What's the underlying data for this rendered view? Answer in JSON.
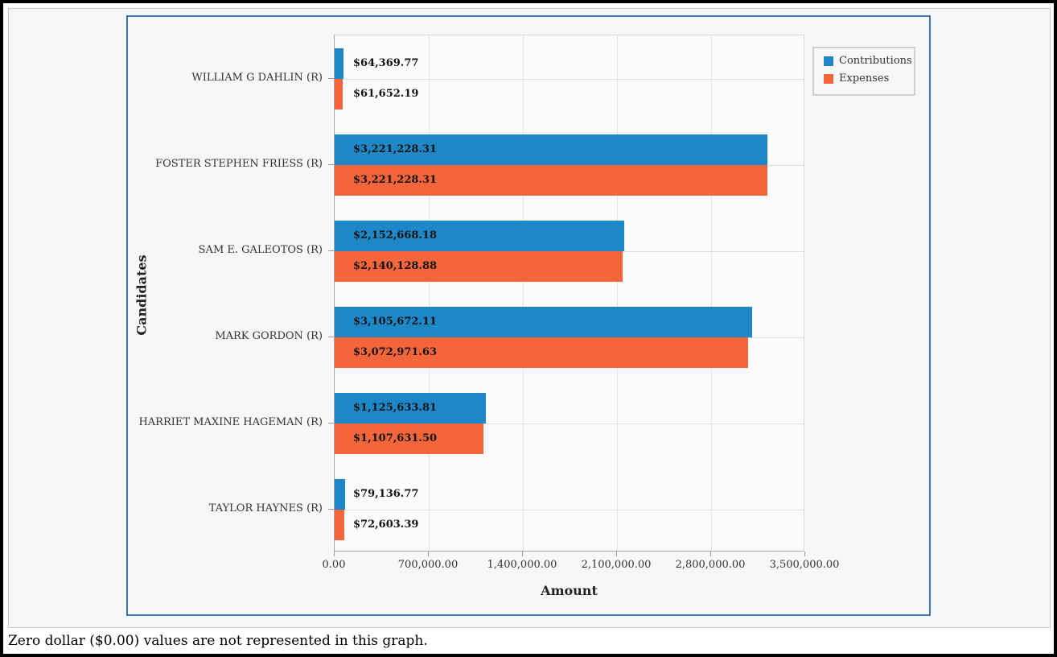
{
  "page": {
    "note": "Zero dollar ($0.00) values are not represented in this graph."
  },
  "colors": {
    "contributions": "#1e87c8",
    "expenses": "#f4653c",
    "chart_border": "#3f74b5",
    "panel_border": "#c9c9c9",
    "plot_background": "#fbfbfb",
    "panel_background": "#f6f7f7"
  },
  "chart_data": {
    "type": "bar",
    "orientation": "horizontal",
    "xlabel": "Amount",
    "ylabel": "Candidates",
    "xlim": [
      0,
      3500000
    ],
    "grid": true,
    "legend_position": "top-right",
    "x_ticks": [
      "0.00",
      "700,000.00",
      "1,400,000.00",
      "2,100,000.00",
      "2,800,000.00",
      "3,500,000.00"
    ],
    "x_tick_values": [
      0,
      700000,
      1400000,
      2100000,
      2800000,
      3500000
    ],
    "categories": [
      "WILLIAM G DAHLIN (R)",
      "FOSTER STEPHEN FRIESS (R)",
      "SAM E. GALEOTOS (R)",
      "MARK GORDON (R)",
      "HARRIET MAXINE HAGEMAN (R)",
      "TAYLOR HAYNES (R)"
    ],
    "series": [
      {
        "name": "Contributions",
        "color": "#1e87c8",
        "values": [
          64369.77,
          3221228.31,
          2152668.18,
          3105672.11,
          1125633.81,
          79136.77
        ],
        "labels": [
          "$64,369.77",
          "$3,221,228.31",
          "$2,152,668.18",
          "$3,105,672.11",
          "$1,125,633.81",
          "$79,136.77"
        ]
      },
      {
        "name": "Expenses",
        "color": "#f4653c",
        "values": [
          61652.19,
          3221228.31,
          2140128.88,
          3072971.63,
          1107631.5,
          72603.39
        ],
        "labels": [
          "$61,652.19",
          "$3,221,228.31",
          "$2,140,128.88",
          "$3,072,971.63",
          "$1,107,631.50",
          "$72,603.39"
        ]
      }
    ]
  }
}
